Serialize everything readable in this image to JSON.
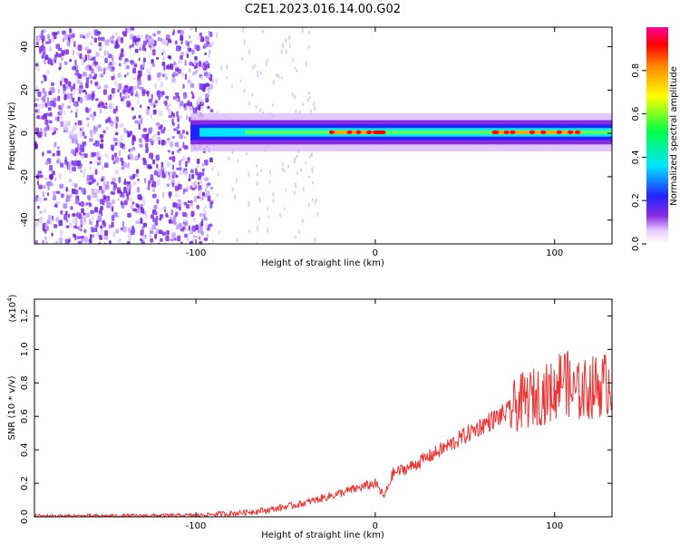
{
  "title": "C2E1.2023.016.14.00.G02",
  "chart_data": [
    {
      "type": "heatmap",
      "xlabel": "Height of straight line (km)",
      "ylabel": "Frequency (Hz)",
      "xlim": [
        -190,
        132
      ],
      "ylim": [
        -51,
        49
      ],
      "xticks": [
        -100,
        0,
        100
      ],
      "yticks": [
        -40,
        -20,
        0,
        20,
        40
      ],
      "colorbar": {
        "label": "Normalized spectral amplitude",
        "range": [
          0,
          1
        ],
        "ticks": [
          0.0,
          0.2,
          0.4,
          0.6,
          0.8
        ]
      },
      "features": {
        "noise_region_x": [
          -190,
          -92
        ],
        "band_start_x": -103,
        "band_center_hz": 0.5,
        "band_halfwidth_hz": 4,
        "peak_segments_x": [
          [
            -25,
            5
          ],
          [
            65,
            115
          ]
        ]
      }
    },
    {
      "type": "line",
      "xlabel": "Height of straight line (km)",
      "ylabel": "SNR (10 * v/v)",
      "y_multiplier_label": "(x10",
      "y_multiplier_exp": "4",
      "y_multiplier_close": ")",
      "xlim": [
        -190,
        132
      ],
      "ylim": [
        0,
        1.3
      ],
      "xticks": [
        -100,
        0,
        100
      ],
      "yticks": [
        0.0,
        0.2,
        0.4,
        0.6,
        0.8,
        1.0,
        1.2
      ],
      "line_color": "#ee3333",
      "series": [
        {
          "x": [
            -190,
            -150,
            -120,
            -100,
            -80,
            -60,
            -40,
            -20,
            0,
            5,
            10,
            20,
            40,
            60,
            75,
            80,
            90,
            100,
            105,
            110,
            120,
            130
          ],
          "y": [
            0.005,
            0.005,
            0.008,
            0.01,
            0.02,
            0.04,
            0.08,
            0.14,
            0.2,
            0.12,
            0.26,
            0.3,
            0.42,
            0.55,
            0.63,
            0.68,
            0.72,
            0.75,
            0.85,
            0.73,
            0.77,
            0.8
          ]
        }
      ]
    }
  ]
}
